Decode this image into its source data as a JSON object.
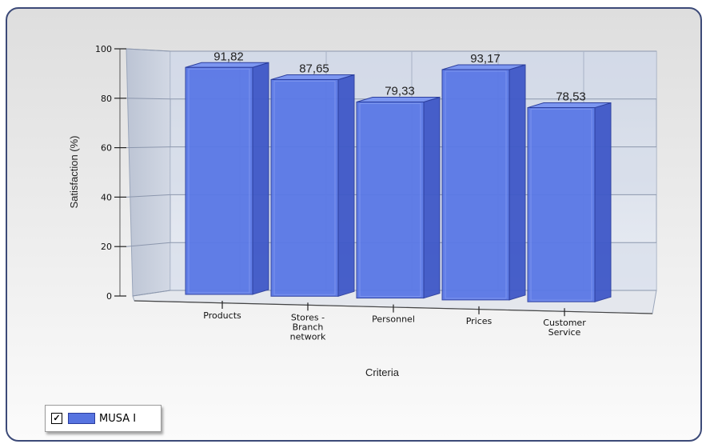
{
  "chart_data": {
    "type": "bar",
    "title": "",
    "categories": [
      "Products",
      "Stores - Branch network",
      "Personnel",
      "Prices",
      "Customer Service"
    ],
    "category_lines": [
      [
        "Products"
      ],
      [
        "Stores -",
        "Branch",
        "network"
      ],
      [
        "Personnel"
      ],
      [
        "Prices"
      ],
      [
        "Customer",
        "Service"
      ]
    ],
    "series": [
      {
        "name": "MUSA I",
        "values": [
          91.82,
          87.65,
          79.33,
          93.17,
          78.53
        ]
      }
    ],
    "value_labels": [
      "91,82",
      "87,65",
      "79,33",
      "93,17",
      "78,53"
    ],
    "xlabel": "Criteria",
    "ylabel": "Satisfaction (%)",
    "ylim": [
      0,
      100
    ],
    "yticks": [
      0,
      20,
      40,
      60,
      80,
      100
    ],
    "grid": true,
    "three_d": true,
    "legend": {
      "position": "bottom-left",
      "checked": true,
      "check_mark": "✓"
    },
    "colors": {
      "bar_front": "#5a78e6",
      "bar_side": "#3f58c8",
      "bar_top": "#7c96f0"
    }
  }
}
